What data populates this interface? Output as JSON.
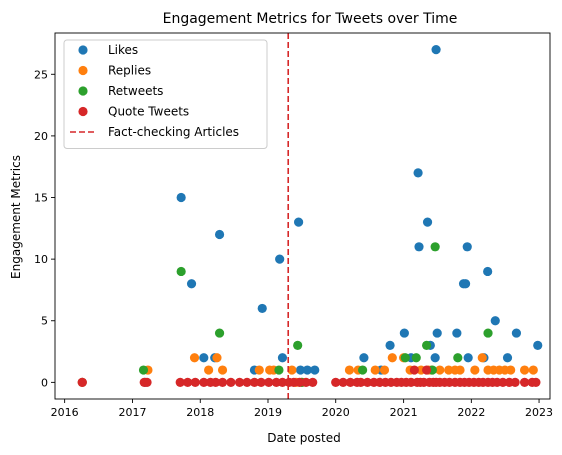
{
  "chart_data": {
    "type": "scatter",
    "title": "Engagement Metrics for Tweets over Time",
    "xlabel": "Date posted",
    "ylabel": "Engagement Metrics",
    "xlim": [
      "2015-11-10",
      "2023-03-01"
    ],
    "ylim": [
      -1.35,
      28.35
    ],
    "x_ticks": [
      {
        "date": "2016-01-01",
        "label": "2016"
      },
      {
        "date": "2017-01-01",
        "label": "2017"
      },
      {
        "date": "2018-01-01",
        "label": "2018"
      },
      {
        "date": "2019-01-01",
        "label": "2019"
      },
      {
        "date": "2020-01-01",
        "label": "2020"
      },
      {
        "date": "2021-01-01",
        "label": "2021"
      },
      {
        "date": "2022-01-01",
        "label": "2022"
      },
      {
        "date": "2023-01-01",
        "label": "2023"
      }
    ],
    "y_ticks": [
      0,
      5,
      10,
      15,
      20,
      25
    ],
    "grid": false,
    "legend_position": "top-left",
    "vline": {
      "date": "2019-04-20",
      "name": "Fact-checking Articles",
      "color": "#d62728"
    },
    "series": [
      {
        "name": "Likes",
        "color": "#1f77b4",
        "points": [
          [
            "2016-04-05",
            0
          ],
          [
            "2017-03-10",
            0
          ],
          [
            "2017-09-20",
            15
          ],
          [
            "2017-11-15",
            8
          ],
          [
            "2018-01-20",
            2
          ],
          [
            "2018-03-20",
            2
          ],
          [
            "2018-04-15",
            12
          ],
          [
            "2018-10-20",
            1
          ],
          [
            "2018-12-01",
            6
          ],
          [
            "2019-03-05",
            10
          ],
          [
            "2019-03-20",
            2
          ],
          [
            "2019-06-15",
            13
          ],
          [
            "2019-06-25",
            1
          ],
          [
            "2019-08-01",
            1
          ],
          [
            "2019-09-10",
            1
          ],
          [
            "2020-06-01",
            2
          ],
          [
            "2020-09-01",
            1
          ],
          [
            "2020-10-20",
            3
          ],
          [
            "2021-01-05",
            4
          ],
          [
            "2021-02-10",
            2
          ],
          [
            "2021-03-20",
            17
          ],
          [
            "2021-03-25",
            11
          ],
          [
            "2021-05-10",
            13
          ],
          [
            "2021-06-20",
            2
          ],
          [
            "2021-07-01",
            4
          ],
          [
            "2021-10-15",
            4
          ],
          [
            "2021-11-20",
            8
          ],
          [
            "2021-12-01",
            8
          ],
          [
            "2021-12-10",
            11
          ],
          [
            "2021-12-15",
            2
          ],
          [
            "2022-03-10",
            2
          ],
          [
            "2022-03-30",
            9
          ],
          [
            "2022-05-10",
            5
          ],
          [
            "2022-07-15",
            2
          ],
          [
            "2022-09-01",
            4
          ],
          [
            "2022-12-25",
            3
          ],
          [
            "2021-05-25",
            3
          ],
          [
            "2021-06-25",
            27
          ]
        ]
      },
      {
        "name": "Replies",
        "color": "#ff7f0e",
        "points": [
          [
            "2016-04-05",
            0
          ],
          [
            "2017-03-25",
            1
          ],
          [
            "2017-12-01",
            2
          ],
          [
            "2018-02-15",
            1
          ],
          [
            "2018-04-01",
            2
          ],
          [
            "2018-05-01",
            1
          ],
          [
            "2018-11-15",
            1
          ],
          [
            "2019-01-10",
            1
          ],
          [
            "2019-02-01",
            1
          ],
          [
            "2019-05-10",
            1
          ],
          [
            "2019-06-01",
            0
          ],
          [
            "2019-07-05",
            0
          ],
          [
            "2020-03-15",
            1
          ],
          [
            "2020-05-01",
            1
          ],
          [
            "2020-08-01",
            1
          ],
          [
            "2020-09-20",
            1
          ],
          [
            "2020-11-01",
            2
          ],
          [
            "2021-01-01",
            2
          ],
          [
            "2021-02-05",
            1
          ],
          [
            "2021-04-05",
            1
          ],
          [
            "2021-05-15",
            1
          ],
          [
            "2021-06-01",
            1
          ],
          [
            "2021-07-15",
            1
          ],
          [
            "2021-09-01",
            1
          ],
          [
            "2021-10-05",
            1
          ],
          [
            "2021-11-01",
            1
          ],
          [
            "2022-01-20",
            1
          ],
          [
            "2022-03-01",
            2
          ],
          [
            "2022-04-01",
            1
          ],
          [
            "2022-05-01",
            1
          ],
          [
            "2022-06-01",
            1
          ],
          [
            "2022-07-01",
            1
          ],
          [
            "2022-08-01",
            1
          ],
          [
            "2022-10-15",
            1
          ],
          [
            "2022-12-01",
            1
          ]
        ]
      },
      {
        "name": "Retweets",
        "color": "#2ca02c",
        "points": [
          [
            "2017-03-01",
            1
          ],
          [
            "2017-09-20",
            9
          ],
          [
            "2018-04-15",
            4
          ],
          [
            "2019-03-01",
            1
          ],
          [
            "2019-06-10",
            3
          ],
          [
            "2019-07-01",
            0
          ],
          [
            "2020-05-25",
            1
          ],
          [
            "2021-01-10",
            2
          ],
          [
            "2021-03-10",
            2
          ],
          [
            "2021-05-05",
            3
          ],
          [
            "2021-06-20",
            11
          ],
          [
            "2021-10-20",
            2
          ],
          [
            "2022-04-01",
            4
          ],
          [
            "2021-06-05",
            1
          ]
        ]
      },
      {
        "name": "Quote Tweets",
        "color": "#d62728",
        "points": [
          [
            "2016-04-05",
            0
          ],
          [
            "2017-03-05",
            0
          ],
          [
            "2017-03-20",
            0
          ],
          [
            "2017-09-15",
            0
          ],
          [
            "2017-10-25",
            0
          ],
          [
            "2017-12-05",
            0
          ],
          [
            "2018-01-20",
            0
          ],
          [
            "2018-02-25",
            0
          ],
          [
            "2018-03-25",
            0
          ],
          [
            "2018-05-01",
            0
          ],
          [
            "2018-06-15",
            0
          ],
          [
            "2018-08-01",
            0
          ],
          [
            "2018-09-10",
            0
          ],
          [
            "2018-10-20",
            0
          ],
          [
            "2018-11-25",
            0
          ],
          [
            "2019-01-05",
            0
          ],
          [
            "2019-02-15",
            0
          ],
          [
            "2019-03-20",
            0
          ],
          [
            "2019-04-25",
            0
          ],
          [
            "2019-05-20",
            0
          ],
          [
            "2019-06-20",
            0
          ],
          [
            "2019-07-25",
            0
          ],
          [
            "2019-08-30",
            0
          ],
          [
            "2020-01-01",
            0
          ],
          [
            "2020-02-10",
            0
          ],
          [
            "2020-03-20",
            0
          ],
          [
            "2020-04-25",
            0
          ],
          [
            "2020-05-15",
            0
          ],
          [
            "2020-06-20",
            0
          ],
          [
            "2020-07-25",
            0
          ],
          [
            "2020-08-25",
            0
          ],
          [
            "2020-09-25",
            0
          ],
          [
            "2020-10-25",
            0
          ],
          [
            "2020-11-25",
            0
          ],
          [
            "2020-12-20",
            0
          ],
          [
            "2021-01-15",
            0
          ],
          [
            "2021-02-10",
            0
          ],
          [
            "2021-02-28",
            1
          ],
          [
            "2021-03-15",
            0
          ],
          [
            "2021-04-01",
            0
          ],
          [
            "2021-04-20",
            0
          ],
          [
            "2021-05-05",
            1
          ],
          [
            "2021-05-20",
            0
          ],
          [
            "2021-06-10",
            0
          ],
          [
            "2021-06-25",
            0
          ],
          [
            "2021-07-15",
            0
          ],
          [
            "2021-08-10",
            0
          ],
          [
            "2021-09-05",
            0
          ],
          [
            "2021-10-05",
            0
          ],
          [
            "2021-11-01",
            0
          ],
          [
            "2021-11-25",
            0
          ],
          [
            "2021-12-20",
            0
          ],
          [
            "2022-01-15",
            0
          ],
          [
            "2022-02-10",
            0
          ],
          [
            "2022-03-05",
            0
          ],
          [
            "2022-04-01",
            0
          ],
          [
            "2022-04-25",
            0
          ],
          [
            "2022-05-20",
            0
          ],
          [
            "2022-06-20",
            0
          ],
          [
            "2022-07-25",
            0
          ],
          [
            "2022-08-25",
            0
          ],
          [
            "2022-10-15",
            0
          ],
          [
            "2022-11-25",
            0
          ],
          [
            "2022-12-15",
            0
          ]
        ]
      }
    ]
  }
}
